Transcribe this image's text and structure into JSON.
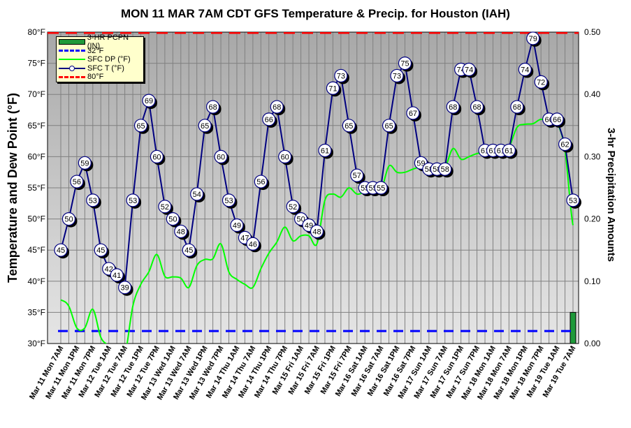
{
  "chart_data": {
    "type": "line",
    "title": "MON 11 MAR 7AM CDT GFS Temperature & Precip. for Houston (IAH)",
    "ylabel": "Temperature and Dew Point (°F)",
    "y2label": "3-hr Precipitation Amounts",
    "ylim": [
      30,
      80
    ],
    "y2lim": [
      0,
      0.5
    ],
    "yticks": [
      "30°F",
      "35°F",
      "40°F",
      "45°F",
      "50°F",
      "55°F",
      "60°F",
      "65°F",
      "70°F",
      "75°F",
      "80°F"
    ],
    "y2ticks": [
      "0.00",
      "0.10",
      "0.20",
      "0.30",
      "0.40",
      "0.50"
    ],
    "interval_hours": 3,
    "xlabels": [
      "Mar 11 Mon 7AM",
      "Mar 11 Mon 1PM",
      "Mar 11 Mon 7PM",
      "Mar 12 Tue 1AM",
      "Mar 12 Tue 7AM",
      "Mar 12 Tue 1PM",
      "Mar 12 Tue 7PM",
      "Mar 13 Wed 1AM",
      "Mar 13 Wed 7AM",
      "Mar 13 Wed 1PM",
      "Mar 13 Wed 7PM",
      "Mar 14 Thu 1AM",
      "Mar 14 Thu 7AM",
      "Mar 14 Thu 1PM",
      "Mar 14 Thu 7PM",
      "Mar 15 Fri 1AM",
      "Mar 15 Fri 7AM",
      "Mar 15 Fri 1PM",
      "Mar 15 Fri 7PM",
      "Mar 16 Sat 1AM",
      "Mar 16 Sat 7AM",
      "Mar 16 Sat 1PM",
      "Mar 16 Sat 7PM",
      "Mar 17 Sun 1AM",
      "Mar 17 Sun 7AM",
      "Mar 17 Sun 1PM",
      "Mar 17 Sun 7PM",
      "Mar 18 Mon 1AM",
      "Mar 18 Mon 7AM",
      "Mar 18 Mon 1PM",
      "Mar 18 Mon 7PM",
      "Mar 19 Tue 1AM",
      "Mar 19 Tue 7AM"
    ],
    "legend": [
      "3-HR PCPN  (IN)",
      "32°F",
      "SFC DP (°F)",
      "SFC T (°F)",
      "80°F"
    ],
    "legend_position": "top-left",
    "series": [
      {
        "name": "SFC T (°F)",
        "color": "#000080",
        "values": [
          45,
          50,
          56,
          59,
          53,
          45,
          42,
          41,
          39,
          53,
          65,
          69,
          60,
          52,
          50,
          48,
          45,
          54,
          65,
          68,
          60,
          53,
          49,
          47,
          46,
          56,
          66,
          68,
          60,
          52,
          50,
          49,
          48,
          61,
          71,
          73,
          65,
          57,
          55,
          55,
          55,
          65,
          73,
          75,
          67,
          59,
          58,
          58,
          58,
          68,
          74,
          74,
          68,
          61,
          61,
          61,
          61,
          68,
          74,
          79,
          72,
          66,
          66,
          62,
          53
        ]
      },
      {
        "name": "SFC DP (°F)",
        "color": "#00ff00",
        "values": [
          37,
          36,
          32.5,
          32.5,
          35.5,
          31,
          29.5,
          27,
          28,
          36,
          39.5,
          41.5,
          44.3,
          40.8,
          40.7,
          40.5,
          39,
          42.5,
          43.5,
          43.6,
          46,
          41.5,
          40.3,
          39.5,
          39,
          42,
          44.5,
          46.3,
          48.7,
          46.5,
          47.3,
          47.3,
          46,
          53,
          54,
          53.5,
          55,
          54,
          54.3,
          54.2,
          54.5,
          58.5,
          57.5,
          57.5,
          58,
          58.3,
          57.5,
          57.8,
          58.2,
          61.3,
          59.6,
          60,
          60.5,
          60.7,
          60.8,
          60.8,
          61.5,
          64.7,
          65.2,
          65.3,
          66,
          65.5,
          65.4,
          61,
          49
        ]
      },
      {
        "name": "3-HR PCPN  (IN)",
        "color": "#1f9a3a",
        "values": [
          0,
          0,
          0,
          0,
          0,
          0,
          0,
          0,
          0,
          0,
          0,
          0,
          0,
          0,
          0,
          0,
          0,
          0,
          0,
          0,
          0,
          0,
          0,
          0,
          0,
          0,
          0,
          0,
          0,
          0,
          0,
          0,
          0,
          0,
          0,
          0,
          0,
          0,
          0,
          0,
          0,
          0,
          0,
          0,
          0,
          0,
          0,
          0,
          0,
          0,
          0,
          0,
          0,
          0,
          0,
          0,
          0,
          0,
          0,
          0,
          0,
          0,
          0,
          0,
          0.05
        ]
      },
      {
        "name": "32°F",
        "color": "#0000ff",
        "value": 32
      },
      {
        "name": "80°F",
        "color": "#ff0000",
        "value": 80
      }
    ]
  }
}
